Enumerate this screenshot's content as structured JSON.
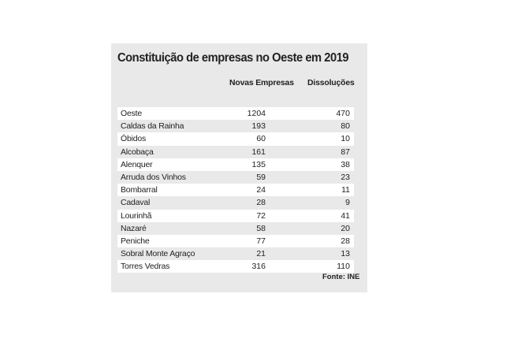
{
  "title": "Constituição de empresas no Oeste em 2019",
  "headers": {
    "col1": "Novas Empresas",
    "col2": "Dissoluções"
  },
  "rows": [
    {
      "name": "Oeste",
      "novas": "1204",
      "dissolucoes": "470"
    },
    {
      "name": "Caldas da Rainha",
      "novas": "193",
      "dissolucoes": "80"
    },
    {
      "name": "Óbidos",
      "novas": "60",
      "dissolucoes": "10"
    },
    {
      "name": "Alcobaça",
      "novas": "161",
      "dissolucoes": "87"
    },
    {
      "name": "Alenquer",
      "novas": "135",
      "dissolucoes": "38"
    },
    {
      "name": "Arruda dos Vinhos",
      "novas": "59",
      "dissolucoes": "23"
    },
    {
      "name": "Bombarral",
      "novas": "24",
      "dissolucoes": "11"
    },
    {
      "name": "Cadaval",
      "novas": "28",
      "dissolucoes": "9"
    },
    {
      "name": "Lourinhã",
      "novas": "72",
      "dissolucoes": "41"
    },
    {
      "name": "Nazaré",
      "novas": "58",
      "dissolucoes": "20"
    },
    {
      "name": "Peniche",
      "novas": "77",
      "dissolucoes": "28"
    },
    {
      "name": "Sobral Monte Agraço",
      "novas": "21",
      "dissolucoes": "13"
    },
    {
      "name": "Torres Vedras",
      "novas": "316",
      "dissolucoes": "110"
    }
  ],
  "source": "Fonte: INE",
  "colors": {
    "panel_background": "#e9e9e9",
    "row_highlight": "#ffffff",
    "text": "#222222"
  }
}
